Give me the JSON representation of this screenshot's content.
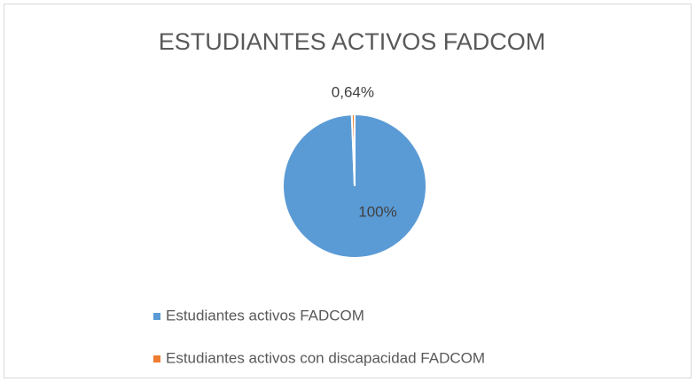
{
  "chart_data": {
    "type": "pie",
    "title": "ESTUDIANTES ACTIVOS FADCOM",
    "categories": [
      "Estudiantes activos FADCOM",
      "Estudiantes activos con discapacidad FADCOM"
    ],
    "values": [
      100,
      0.64
    ],
    "value_labels": [
      "100%",
      "0,64%"
    ],
    "colors": [
      "#5b9bd5",
      "#ed7d31"
    ],
    "legend": "bottom"
  }
}
